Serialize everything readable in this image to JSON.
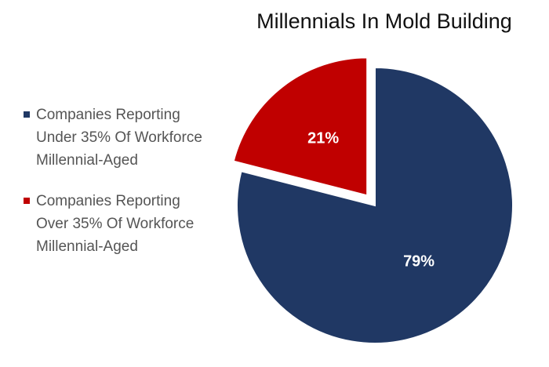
{
  "chart_data": {
    "type": "pie",
    "title": "Millennials In Mold Building",
    "categories": [
      "Companies Reporting Under 35% Of Workforce Millennial-Aged",
      "Companies Reporting Over 35% Of Workforce Millennial-Aged"
    ],
    "values": [
      79,
      21
    ],
    "data_labels": [
      "79%",
      "21%"
    ],
    "colors": [
      "#203864",
      "#C00000"
    ],
    "exploded": [
      false,
      true
    ],
    "legend_placement": "left"
  }
}
